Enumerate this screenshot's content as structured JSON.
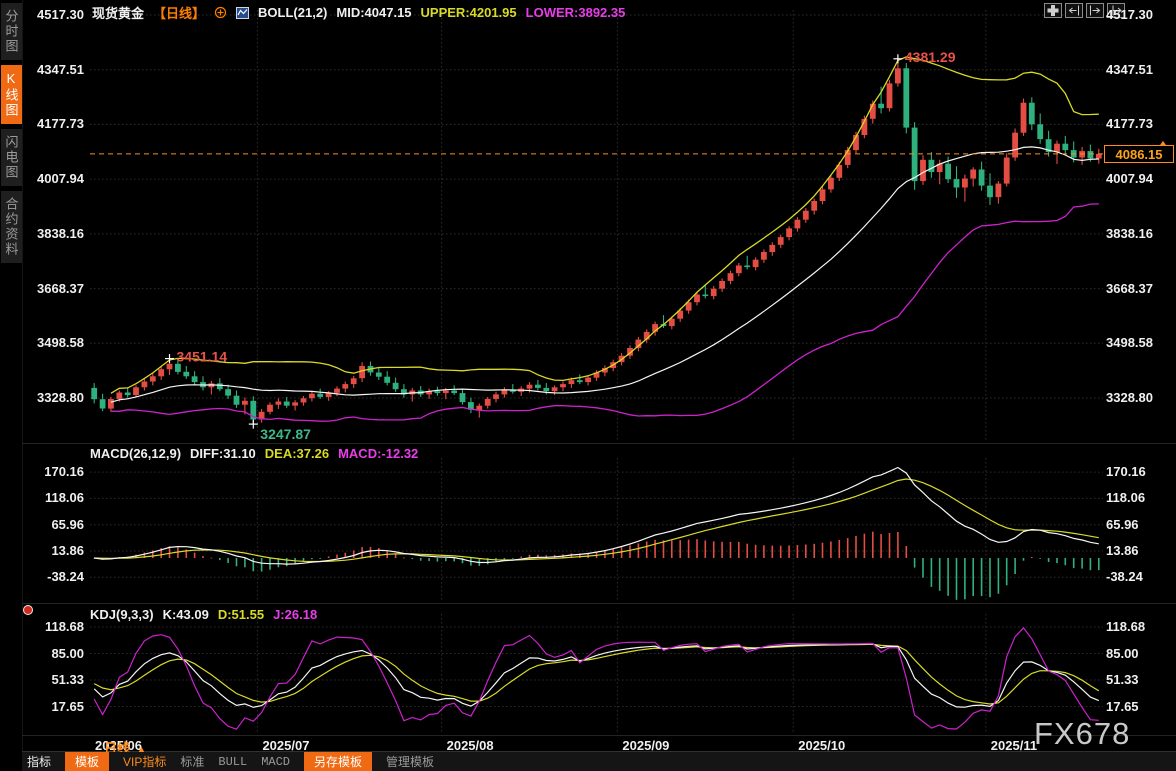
{
  "app": {
    "watermark": "FX678",
    "colors": {
      "up": "#e34d44",
      "down": "#2eb17e",
      "boll_mid": "#f5f5f5",
      "boll_upper": "#d8da25",
      "boll_lower": "#cc22cc",
      "accent_orange": "#f06a13",
      "price_line": "#ff8c1a"
    }
  },
  "sidebar": {
    "items": [
      {
        "label": "分时图",
        "active": false
      },
      {
        "label": "K线图",
        "active": true
      },
      {
        "label": "闪电图",
        "active": false
      },
      {
        "label": "合约资料",
        "active": false
      }
    ]
  },
  "header": {
    "symbol": "现货黄金",
    "period": "【日线】",
    "indicator": "BOLL(21,2)",
    "mid": "MID:4047.15",
    "upper": "UPPER:4201.95",
    "lower": "LOWER:3892.35"
  },
  "top_icons": [
    "move-chart",
    "shift-left",
    "shift-right",
    "page-right"
  ],
  "main_chart": {
    "y_ticks": [
      "4517.30",
      "4347.51",
      "4177.73",
      "4007.94",
      "3838.16",
      "3668.37",
      "3498.58",
      "3328.80"
    ],
    "last_price": "4086.15"
  },
  "macd_panel": {
    "label": "MACD(26,12,9)",
    "diff": "DIFF:31.10",
    "dea": "DEA:37.26",
    "macd": "MACD:-12.32",
    "y_ticks": [
      "170.16",
      "118.06",
      "65.96",
      "13.86",
      "-38.24"
    ]
  },
  "kdj_panel": {
    "label": "KDJ(9,3,3)",
    "k": "K:43.09",
    "d": "D:51.55",
    "j": "J:26.18",
    "y_ticks": [
      "118.68",
      "85.00",
      "51.33",
      "17.65"
    ]
  },
  "x_axis": {
    "period_label": "日线",
    "period_arrow": "▲",
    "labels": [
      "2025/06",
      "2025/07",
      "2025/08",
      "2025/09",
      "2025/10",
      "2025/11"
    ]
  },
  "toolbar": {
    "items": [
      {
        "label": "指标",
        "style": "plain"
      },
      {
        "label": "模板",
        "style": "orange"
      },
      {
        "label": "VIP指标",
        "style": "orange-text"
      },
      {
        "label": "标准",
        "style": "grey"
      },
      {
        "label": "BULL",
        "style": "grey-mono"
      },
      {
        "label": "MACD",
        "style": "grey-mono"
      },
      {
        "label": "另存模板",
        "style": "orange"
      },
      {
        "label": "管理模板",
        "style": "grey"
      }
    ]
  },
  "chart_data": {
    "type": "candlestick",
    "symbol": "现货黄金",
    "interval": "daily",
    "x_labels": [
      "2025/06",
      "2025/07",
      "2025/08",
      "2025/09",
      "2025/10",
      "2025/11"
    ],
    "x_label_indices": [
      0,
      20,
      42,
      63,
      84,
      107
    ],
    "main_ylim": [
      3192,
      4564
    ],
    "last_price": 4086.15,
    "annotations": [
      {
        "index": 9,
        "price": 3451.14,
        "label": "3451.14",
        "kind": "swing-high"
      },
      {
        "index": 19,
        "price": 3247.87,
        "label": "3247.87",
        "kind": "swing-low"
      },
      {
        "index": 96,
        "price": 4381.29,
        "label": "4381.29",
        "kind": "peak"
      }
    ],
    "indicators": {
      "boll": {
        "period": 21,
        "mult": 2,
        "mid": 4047.15,
        "upper": 4201.95,
        "lower": 3892.35
      },
      "macd": {
        "fast": 12,
        "slow": 26,
        "signal": 9,
        "diff": 31.1,
        "dea": 37.26,
        "macd": -12.32,
        "ylim": [
          -94,
          184
        ]
      },
      "kdj": {
        "n": 9,
        "m1": 3,
        "m2": 3,
        "k": 43.09,
        "d": 51.55,
        "j": 26.18,
        "ylim": [
          -16,
          127
        ]
      }
    },
    "candles": [
      [
        3360,
        3375,
        3312,
        3325
      ],
      [
        3325,
        3342,
        3288,
        3296
      ],
      [
        3296,
        3332,
        3286,
        3326
      ],
      [
        3326,
        3352,
        3318,
        3346
      ],
      [
        3346,
        3362,
        3330,
        3338
      ],
      [
        3338,
        3368,
        3330,
        3362
      ],
      [
        3362,
        3388,
        3352,
        3380
      ],
      [
        3380,
        3405,
        3368,
        3396
      ],
      [
        3396,
        3428,
        3385,
        3418
      ],
      [
        3418,
        3451.14,
        3400,
        3435
      ],
      [
        3435,
        3448,
        3402,
        3410
      ],
      [
        3410,
        3428,
        3388,
        3396
      ],
      [
        3396,
        3412,
        3368,
        3378
      ],
      [
        3378,
        3396,
        3352,
        3362
      ],
      [
        3362,
        3382,
        3340,
        3374
      ],
      [
        3374,
        3390,
        3350,
        3356
      ],
      [
        3356,
        3370,
        3326,
        3336
      ],
      [
        3336,
        3352,
        3298,
        3308
      ],
      [
        3308,
        3330,
        3278,
        3320
      ],
      [
        3320,
        3334,
        3247.87,
        3262
      ],
      [
        3262,
        3295,
        3252,
        3286
      ],
      [
        3286,
        3315,
        3278,
        3308
      ],
      [
        3308,
        3328,
        3295,
        3318
      ],
      [
        3318,
        3332,
        3298,
        3305
      ],
      [
        3305,
        3322,
        3290,
        3315
      ],
      [
        3315,
        3335,
        3305,
        3328
      ],
      [
        3328,
        3350,
        3318,
        3342
      ],
      [
        3342,
        3358,
        3326,
        3332
      ],
      [
        3332,
        3350,
        3320,
        3345
      ],
      [
        3345,
        3365,
        3334,
        3358
      ],
      [
        3358,
        3380,
        3346,
        3372
      ],
      [
        3372,
        3398,
        3360,
        3390
      ],
      [
        3390,
        3440,
        3378,
        3428
      ],
      [
        3428,
        3442,
        3398,
        3408
      ],
      [
        3408,
        3425,
        3385,
        3395
      ],
      [
        3395,
        3412,
        3368,
        3376
      ],
      [
        3376,
        3392,
        3348,
        3356
      ],
      [
        3356,
        3372,
        3330,
        3340
      ],
      [
        3340,
        3360,
        3318,
        3352
      ],
      [
        3352,
        3366,
        3332,
        3340
      ],
      [
        3340,
        3358,
        3326,
        3350
      ],
      [
        3350,
        3364,
        3336,
        3344
      ],
      [
        3344,
        3360,
        3325,
        3352
      ],
      [
        3352,
        3368,
        3338,
        3344
      ],
      [
        3344,
        3355,
        3308,
        3316
      ],
      [
        3316,
        3330,
        3282,
        3292
      ],
      [
        3292,
        3312,
        3268,
        3305
      ],
      [
        3305,
        3332,
        3296,
        3326
      ],
      [
        3326,
        3348,
        3315,
        3340
      ],
      [
        3340,
        3362,
        3330,
        3354
      ],
      [
        3354,
        3372,
        3342,
        3348
      ],
      [
        3348,
        3365,
        3335,
        3358
      ],
      [
        3358,
        3378,
        3346,
        3370
      ],
      [
        3370,
        3385,
        3352,
        3360
      ],
      [
        3360,
        3375,
        3340,
        3350
      ],
      [
        3350,
        3368,
        3338,
        3362
      ],
      [
        3362,
        3380,
        3350,
        3372
      ],
      [
        3372,
        3392,
        3360,
        3384
      ],
      [
        3384,
        3402,
        3372,
        3378
      ],
      [
        3378,
        3398,
        3368,
        3392
      ],
      [
        3392,
        3415,
        3382,
        3408
      ],
      [
        3408,
        3430,
        3396,
        3422
      ],
      [
        3422,
        3448,
        3412,
        3440
      ],
      [
        3440,
        3468,
        3430,
        3460
      ],
      [
        3460,
        3492,
        3450,
        3484
      ],
      [
        3484,
        3518,
        3474,
        3510
      ],
      [
        3510,
        3542,
        3500,
        3534
      ],
      [
        3534,
        3566,
        3522,
        3558
      ],
      [
        3558,
        3586,
        3546,
        3552
      ],
      [
        3552,
        3582,
        3542,
        3575
      ],
      [
        3575,
        3608,
        3565,
        3600
      ],
      [
        3600,
        3634,
        3590,
        3626
      ],
      [
        3626,
        3658,
        3616,
        3650
      ],
      [
        3650,
        3680,
        3638,
        3645
      ],
      [
        3645,
        3676,
        3635,
        3668
      ],
      [
        3668,
        3700,
        3658,
        3692
      ],
      [
        3692,
        3724,
        3682,
        3716
      ],
      [
        3716,
        3748,
        3706,
        3740
      ],
      [
        3740,
        3770,
        3728,
        3735
      ],
      [
        3735,
        3765,
        3725,
        3758
      ],
      [
        3758,
        3790,
        3748,
        3782
      ],
      [
        3782,
        3812,
        3770,
        3804
      ],
      [
        3804,
        3836,
        3794,
        3828
      ],
      [
        3828,
        3862,
        3818,
        3855
      ],
      [
        3855,
        3890,
        3845,
        3882
      ],
      [
        3882,
        3918,
        3872,
        3910
      ],
      [
        3910,
        3948,
        3898,
        3940
      ],
      [
        3940,
        3985,
        3930,
        3976
      ],
      [
        3976,
        4022,
        3966,
        4012
      ],
      [
        4012,
        4062,
        4002,
        4052
      ],
      [
        4052,
        4108,
        4042,
        4098
      ],
      [
        4098,
        4155,
        4088,
        4145
      ],
      [
        4145,
        4205,
        4135,
        4195
      ],
      [
        4195,
        4252,
        4180,
        4242
      ],
      [
        4242,
        4295,
        4212,
        4228
      ],
      [
        4228,
        4315,
        4218,
        4305
      ],
      [
        4305,
        4381.29,
        4295,
        4352
      ],
      [
        4352,
        4368,
        4150,
        4168
      ],
      [
        4168,
        4185,
        3975,
        4002
      ],
      [
        4002,
        4082,
        3990,
        4068
      ],
      [
        4068,
        4092,
        4012,
        4030
      ],
      [
        4030,
        4068,
        3992,
        4056
      ],
      [
        4056,
        4078,
        3996,
        4008
      ],
      [
        4008,
        4048,
        3950,
        3982
      ],
      [
        3982,
        4022,
        3938,
        4010
      ],
      [
        4010,
        4045,
        3985,
        4038
      ],
      [
        4038,
        4062,
        3972,
        3988
      ],
      [
        3988,
        4026,
        3928,
        3952
      ],
      [
        3952,
        4002,
        3932,
        3994
      ],
      [
        3994,
        4088,
        3985,
        4075
      ],
      [
        4075,
        4165,
        4065,
        4152
      ],
      [
        4152,
        4258,
        4142,
        4245
      ],
      [
        4245,
        4262,
        4160,
        4178
      ],
      [
        4178,
        4212,
        4118,
        4132
      ],
      [
        4132,
        4158,
        4078,
        4092
      ],
      [
        4092,
        4128,
        4055,
        4118
      ],
      [
        4118,
        4142,
        4085,
        4098
      ],
      [
        4098,
        4125,
        4060,
        4075
      ],
      [
        4075,
        4108,
        4052,
        4095
      ],
      [
        4095,
        4115,
        4062,
        4072
      ],
      [
        4072,
        4102,
        4056,
        4086.15
      ]
    ]
  }
}
